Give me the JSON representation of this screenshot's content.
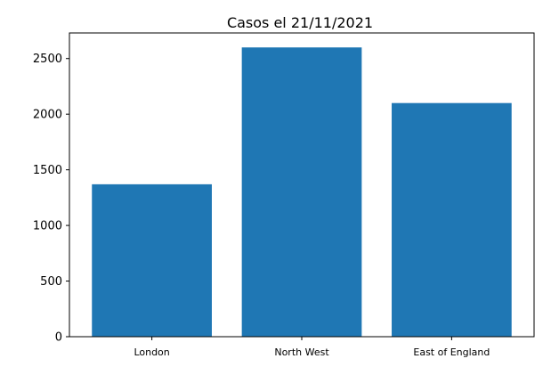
{
  "chart_data": {
    "type": "bar",
    "title": "Casos el 21/11/2021",
    "categories": [
      "London",
      "North West",
      "East of England"
    ],
    "values": [
      1370,
      2600,
      2100
    ],
    "ylim": [
      0,
      2730
    ],
    "yticks": [
      0,
      500,
      1000,
      1500,
      2000,
      2500
    ],
    "ytick_labels": [
      "0",
      "500",
      "1000",
      "1500",
      "2000",
      "2500"
    ],
    "xlabel": "",
    "ylabel": "",
    "grid": false,
    "legend": "none",
    "bar_color": "#1f77b4"
  }
}
